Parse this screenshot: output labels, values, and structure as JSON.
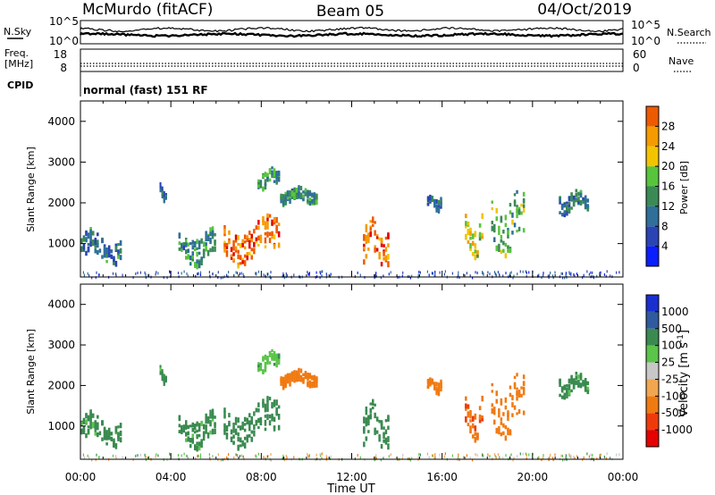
{
  "header": {
    "station": "McMurdo (fitACF)",
    "beam": "Beam 05",
    "date": "04/Oct/2019"
  },
  "noise_panel": {
    "left_label": "N.Sky",
    "right_label": "N.Search",
    "left_ticks": [
      "10^5",
      "10^0"
    ],
    "right_ticks": [
      "10^5",
      "10^0"
    ]
  },
  "freq_panel": {
    "left_label_1": "Freq.",
    "left_label_2": "[MHz]",
    "right_label": "Nave",
    "left_ticks": [
      "18",
      "8"
    ],
    "right_ticks": [
      "60",
      "0"
    ]
  },
  "cpid_panel": {
    "label": "CPID",
    "text": "normal (fast) 151 RF"
  },
  "colors": {
    "power_scale": [
      "#0a1eff",
      "#2a44b4",
      "#2f6f9a",
      "#3b8a55",
      "#58c43c",
      "#f2c400",
      "#f59a00",
      "#ee5a00",
      "#e40000"
    ],
    "velocity_scale": [
      "#e40000",
      "#ef3b0c",
      "#f07a12",
      "#f2a650",
      "#c8c8c8",
      "#5bc44a",
      "#3a8a50",
      "#2f5aa0",
      "#1a2fd0"
    ]
  },
  "chart_data": [
    {
      "type": "heatmap",
      "panel": "power",
      "ylabel": "Slant Range [km]",
      "yticks": [
        "1000",
        "2000",
        "3000",
        "4000"
      ],
      "ylim": [
        180,
        4500
      ],
      "xlim_hours": [
        0,
        24
      ],
      "colorbar": {
        "label": "Power [dB]",
        "ticks": [
          "4",
          "8",
          "12",
          "16",
          "20",
          "24",
          "28"
        ],
        "range": [
          0,
          32
        ]
      },
      "echo_regions": [
        {
          "t_start": "00:00",
          "t_end": "01:50",
          "range_km": [
            700,
            1300
          ],
          "value_db": 10
        },
        {
          "t_start": "03:30",
          "t_end": "03:50",
          "range_km": [
            2150,
            2450
          ],
          "value_db": 8
        },
        {
          "t_start": "04:20",
          "t_end": "06:00",
          "range_km": [
            700,
            1400
          ],
          "value_db": 12
        },
        {
          "t_start": "06:20",
          "t_end": "08:50",
          "range_km": [
            750,
            1600
          ],
          "value_db": 25
        },
        {
          "t_start": "07:50",
          "t_end": "08:50",
          "range_km": [
            2450,
            2850
          ],
          "value_db": 12
        },
        {
          "t_start": "08:50",
          "t_end": "10:30",
          "range_km": [
            2050,
            2350
          ],
          "value_db": 12
        },
        {
          "t_start": "12:30",
          "t_end": "13:40",
          "range_km": [
            700,
            1600
          ],
          "value_db": 26
        },
        {
          "t_start": "15:20",
          "t_end": "16:00",
          "range_km": [
            1900,
            2150
          ],
          "value_db": 8
        },
        {
          "t_start": "17:00",
          "t_end": "17:50",
          "range_km": [
            900,
            1700
          ],
          "value_db": 18
        },
        {
          "t_start": "18:10",
          "t_end": "19:40",
          "range_km": [
            1000,
            2300
          ],
          "value_db": 14
        },
        {
          "t_start": "21:10",
          "t_end": "22:30",
          "range_km": [
            1850,
            2300
          ],
          "value_db": 10
        }
      ]
    },
    {
      "type": "heatmap",
      "panel": "velocity",
      "ylabel": "Slant Range [km]",
      "yticks": [
        "1000",
        "2000",
        "3000",
        "4000"
      ],
      "ylim": [
        180,
        4500
      ],
      "xlabel": "Time UT",
      "xticks": [
        "00:00",
        "04:00",
        "08:00",
        "12:00",
        "16:00",
        "20:00",
        "00:00"
      ],
      "xlim_hours": [
        0,
        24
      ],
      "colorbar": {
        "label": "Velocity [m s",
        "label_sup": "-1",
        "label_end": "]",
        "ticks": [
          "-1000",
          "-500",
          "-100",
          "-25",
          "25",
          "100",
          "500",
          "1000"
        ]
      },
      "echo_regions": [
        {
          "t_start": "00:00",
          "t_end": "01:50",
          "range_km": [
            700,
            1300
          ],
          "value_ms": 150
        },
        {
          "t_start": "03:30",
          "t_end": "03:50",
          "range_km": [
            2150,
            2450
          ],
          "value_ms": 150
        },
        {
          "t_start": "04:20",
          "t_end": "06:00",
          "range_km": [
            700,
            1400
          ],
          "value_ms": 150
        },
        {
          "t_start": "06:20",
          "t_end": "08:50",
          "range_km": [
            750,
            1600
          ],
          "value_ms": 300
        },
        {
          "t_start": "07:50",
          "t_end": "08:50",
          "range_km": [
            2450,
            2850
          ],
          "value_ms": 80
        },
        {
          "t_start": "08:50",
          "t_end": "10:30",
          "range_km": [
            2050,
            2350
          ],
          "value_ms": -300
        },
        {
          "t_start": "12:30",
          "t_end": "13:40",
          "range_km": [
            700,
            1600
          ],
          "value_ms": 200
        },
        {
          "t_start": "15:20",
          "t_end": "16:00",
          "range_km": [
            1900,
            2150
          ],
          "value_ms": -300
        },
        {
          "t_start": "17:00",
          "t_end": "17:50",
          "range_km": [
            900,
            1700
          ],
          "value_ms": -400
        },
        {
          "t_start": "18:10",
          "t_end": "19:40",
          "range_km": [
            1000,
            2300
          ],
          "value_ms": -300
        },
        {
          "t_start": "21:10",
          "t_end": "22:30",
          "range_km": [
            1850,
            2300
          ],
          "value_ms": 150
        }
      ]
    }
  ]
}
